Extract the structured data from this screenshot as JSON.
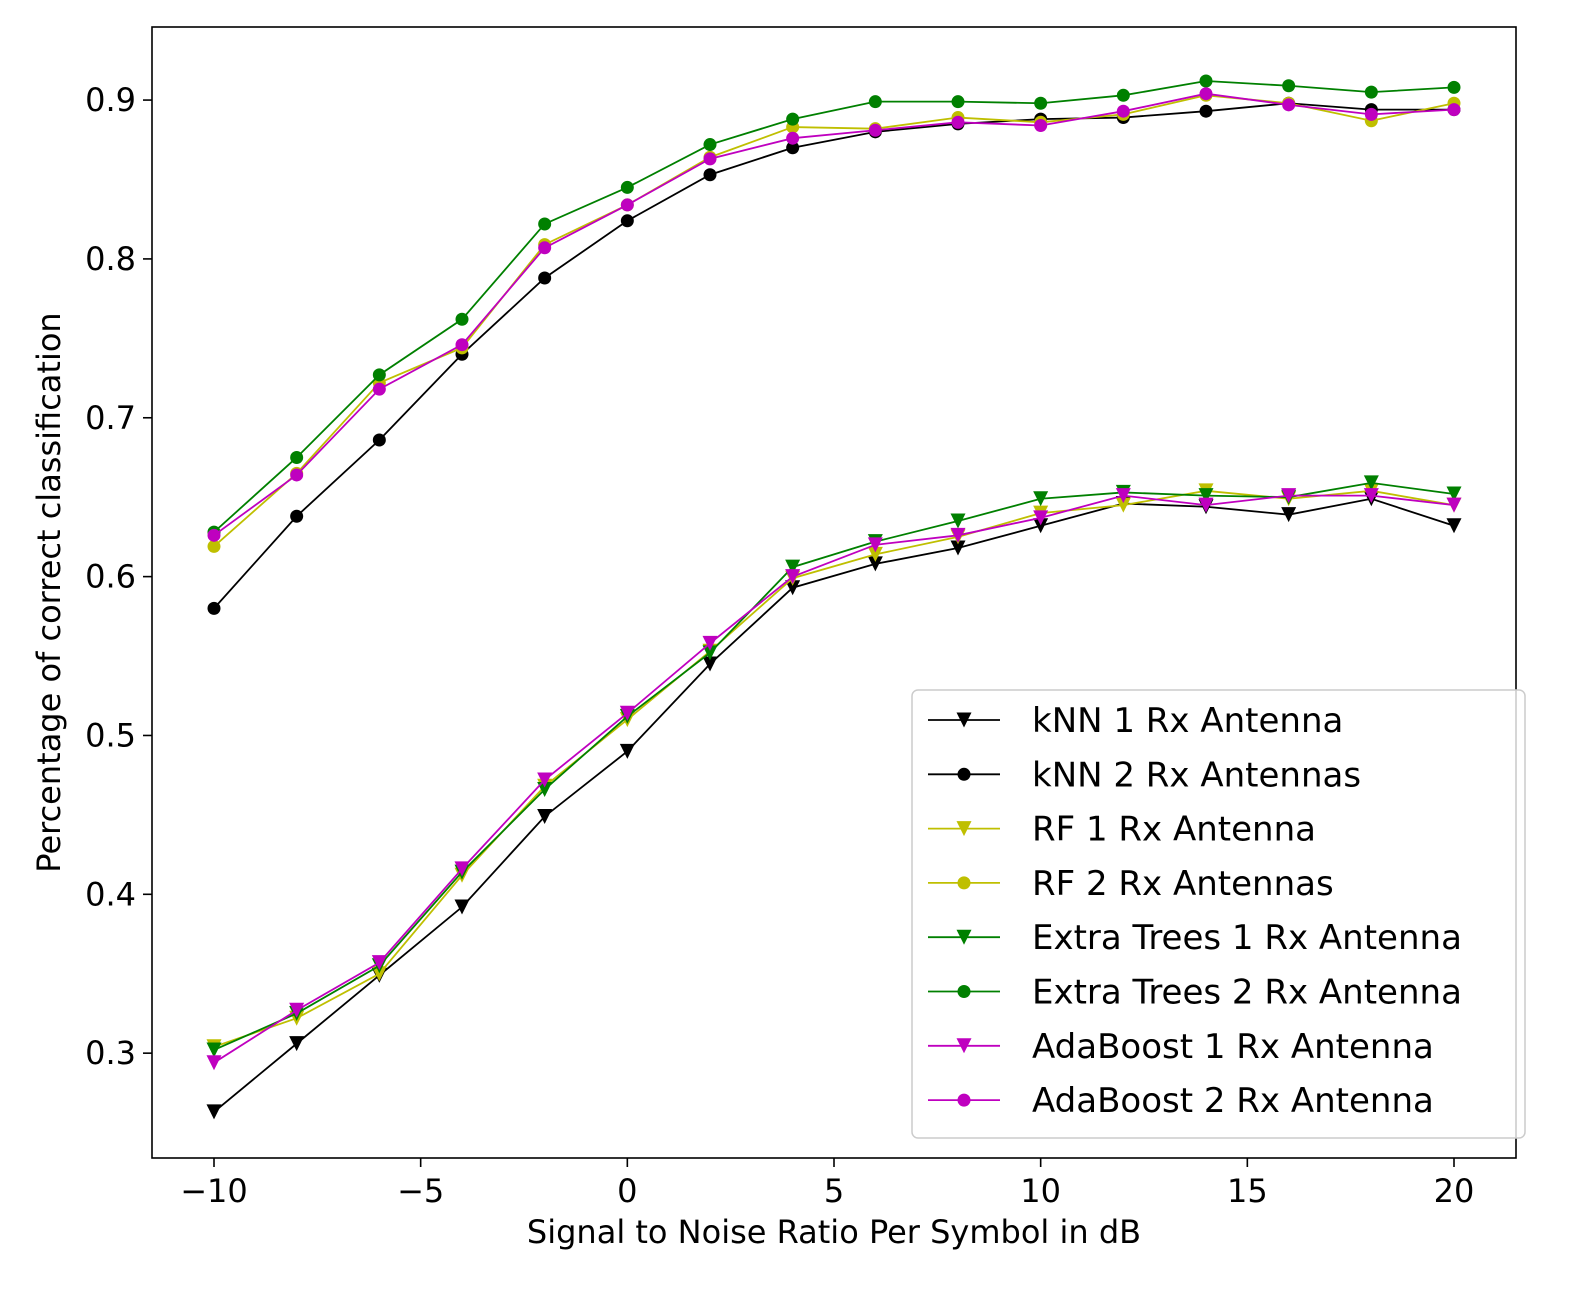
{
  "chart_data": {
    "type": "line",
    "title": "",
    "xlabel": "Signal to Noise Ratio Per Symbol in dB",
    "ylabel": "Percentage of correct classification",
    "xlim": [
      -11.5,
      21.5
    ],
    "ylim": [
      0.234,
      0.946
    ],
    "xticks": [
      -10,
      -5,
      0,
      5,
      10,
      15,
      20
    ],
    "xtick_labels": [
      "−10",
      "−5",
      "0",
      "5",
      "10",
      "15",
      "20"
    ],
    "yticks": [
      0.3,
      0.4,
      0.5,
      0.6,
      0.7,
      0.8,
      0.9
    ],
    "ytick_labels": [
      "0.3",
      "0.4",
      "0.5",
      "0.6",
      "0.7",
      "0.8",
      "0.9"
    ],
    "grid": false,
    "legend_position": "lower right",
    "x": [
      -10,
      -8,
      -6,
      -4,
      -2,
      0,
      2,
      4,
      6,
      8,
      10,
      12,
      14,
      16,
      18,
      20
    ],
    "series": [
      {
        "name": "kNN 1 Rx Antenna",
        "color": "#000000",
        "marker": "triangle-down",
        "values": [
          0.263,
          0.306,
          0.349,
          0.392,
          0.449,
          0.49,
          0.545,
          0.593,
          0.608,
          0.618,
          0.632,
          0.646,
          0.644,
          0.639,
          0.649,
          0.632
        ]
      },
      {
        "name": "kNN 2 Rx Antennas",
        "color": "#000000",
        "marker": "circle",
        "values": [
          0.58,
          0.638,
          0.686,
          0.74,
          0.788,
          0.824,
          0.853,
          0.87,
          0.88,
          0.885,
          0.888,
          0.889,
          0.893,
          0.898,
          0.894,
          0.894
        ]
      },
      {
        "name": "RF 1 Rx Antenna",
        "color": "#bfbf00",
        "marker": "triangle-down",
        "values": [
          0.304,
          0.322,
          0.35,
          0.412,
          0.468,
          0.51,
          0.553,
          0.599,
          0.614,
          0.625,
          0.64,
          0.645,
          0.654,
          0.649,
          0.654,
          0.645
        ]
      },
      {
        "name": "RF 2 Rx Antennas",
        "color": "#bfbf00",
        "marker": "circle",
        "values": [
          0.619,
          0.665,
          0.722,
          0.744,
          0.809,
          0.834,
          0.864,
          0.883,
          0.882,
          0.889,
          0.886,
          0.891,
          0.903,
          0.898,
          0.887,
          0.898
        ]
      },
      {
        "name": "Extra Trees 1 Rx Antenna",
        "color": "#008000",
        "marker": "triangle-down",
        "values": [
          0.302,
          0.325,
          0.355,
          0.414,
          0.466,
          0.512,
          0.552,
          0.606,
          0.622,
          0.635,
          0.649,
          0.653,
          0.651,
          0.65,
          0.659,
          0.652
        ]
      },
      {
        "name": "Extra Trees 2 Rx Antenna",
        "color": "#008000",
        "marker": "circle",
        "values": [
          0.628,
          0.675,
          0.727,
          0.762,
          0.822,
          0.845,
          0.872,
          0.888,
          0.899,
          0.899,
          0.898,
          0.903,
          0.912,
          0.909,
          0.905,
          0.908
        ]
      },
      {
        "name": "AdaBoost 1 Rx Antenna",
        "color": "#bf00bf",
        "marker": "triangle-down",
        "values": [
          0.294,
          0.327,
          0.357,
          0.416,
          0.472,
          0.514,
          0.558,
          0.6,
          0.62,
          0.626,
          0.637,
          0.651,
          0.645,
          0.651,
          0.651,
          0.645
        ]
      },
      {
        "name": "AdaBoost 2 Rx Antenna",
        "color": "#bf00bf",
        "marker": "circle",
        "values": [
          0.626,
          0.664,
          0.718,
          0.746,
          0.807,
          0.834,
          0.863,
          0.876,
          0.881,
          0.886,
          0.884,
          0.893,
          0.904,
          0.897,
          0.891,
          0.894
        ]
      }
    ]
  }
}
